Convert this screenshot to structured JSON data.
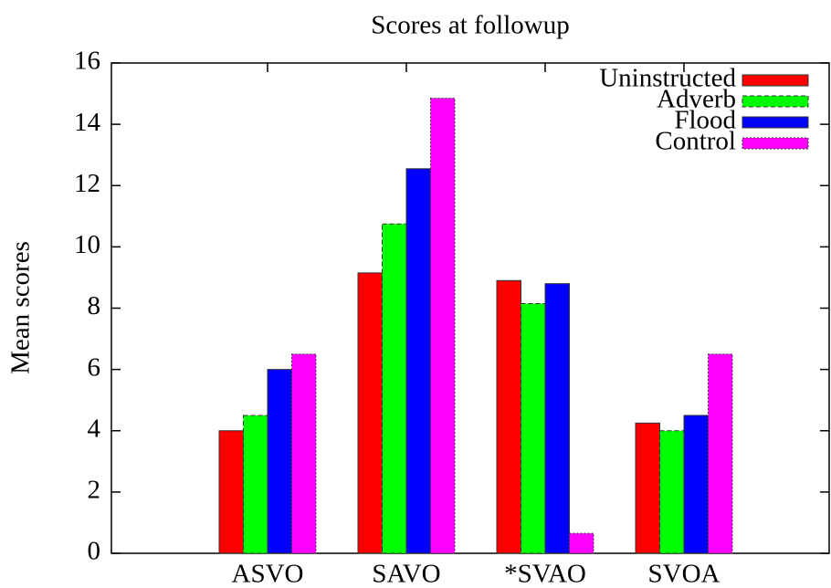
{
  "chart_data": {
    "type": "bar",
    "title": "Scores at followup",
    "y_label": "Mean scores",
    "categories": [
      "ASVO",
      "SAVO",
      "*SVAO",
      "SVOA"
    ],
    "series": [
      {
        "name": "Uninstructed",
        "color": "#ff0000",
        "values": [
          4,
          9.15,
          8.9,
          4.25
        ]
      },
      {
        "name": "Adverb",
        "color": "#00ff00",
        "values": [
          4.5,
          10.75,
          8.15,
          4
        ]
      },
      {
        "name": "Flood",
        "color": "#0000ff",
        "values": [
          6,
          12.55,
          8.8,
          4.5
        ]
      },
      {
        "name": "Control",
        "color": "#ff00ff",
        "values": [
          6.5,
          14.85,
          0.65,
          6.5
        ]
      }
    ],
    "ylim": [
      0,
      16
    ],
    "yticks": [
      0,
      2,
      4,
      6,
      8,
      10,
      12,
      14,
      16
    ],
    "legend": "top-right"
  }
}
